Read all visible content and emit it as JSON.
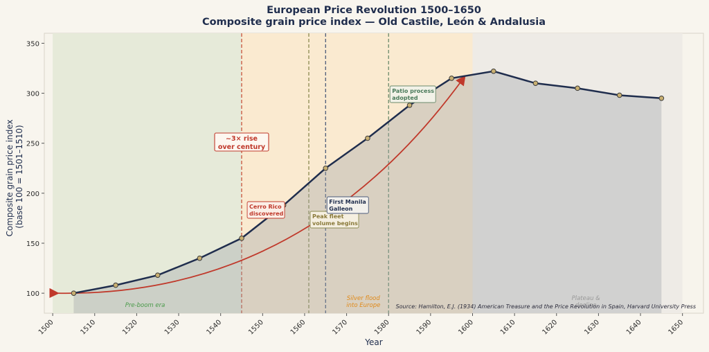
{
  "chart_data": {
    "type": "line",
    "title": "European Price Revolution 1500–1650",
    "subtitle": "Composite grain price index — Old Castile, León & Andalusia",
    "xlabel": "Year",
    "ylabel_line1": "Composite grain price index",
    "ylabel_line2": "(base 100 = 1501–1510)",
    "xlim": [
      1498,
      1655
    ],
    "ylim": [
      80,
      360
    ],
    "x_ticks": [
      1500,
      1510,
      1520,
      1530,
      1540,
      1550,
      1560,
      1570,
      1580,
      1590,
      1600,
      1610,
      1620,
      1630,
      1640,
      1650
    ],
    "y_ticks": [
      100,
      150,
      200,
      250,
      300,
      350
    ],
    "series": [
      {
        "x": [
          1505,
          1515,
          1525,
          1535,
          1545,
          1555,
          1565,
          1575,
          1585,
          1595,
          1605,
          1615,
          1625,
          1635,
          1645
        ],
        "values": [
          100,
          108,
          118,
          135,
          155,
          188,
          225,
          255,
          288,
          315,
          322,
          310,
          305,
          298,
          295
        ]
      }
    ],
    "eras": [
      {
        "label": "Pre-boom era",
        "x0": 1500,
        "x1": 1545,
        "color": "#e6ead9"
      },
      {
        "label": "Silver flood\ninto Europe",
        "x0": 1545,
        "x1": 1600,
        "color": "#faead0"
      },
      {
        "label": "Plateau &\ndecline",
        "x0": 1600,
        "x1": 1650,
        "color": "#eeebe6"
      }
    ],
    "events": [
      {
        "label": "Cerro Rico\ndiscovered",
        "x": 1545,
        "color": "#c8523a"
      },
      {
        "label": "Peak fleet\nvolume begins",
        "x": 1561,
        "color": "#8a8a50"
      },
      {
        "label": "First Manila\nGalleon",
        "x": 1565,
        "color": "#4a5a7a"
      },
      {
        "label": "Patio process\nadopted",
        "x": 1580,
        "color": "#6a8a6a"
      }
    ],
    "annotations": {
      "rise": "~3× rise\nover century",
      "source": "Source: Hamilton, E.J. (1934) American Treasure and the Price Revolution in Spain, Harvard University Press"
    },
    "colors": {
      "line": "#1f2d4d",
      "marker": "#c9b072",
      "arrow": "#c0392b",
      "fill": "#b8bcc0"
    }
  }
}
